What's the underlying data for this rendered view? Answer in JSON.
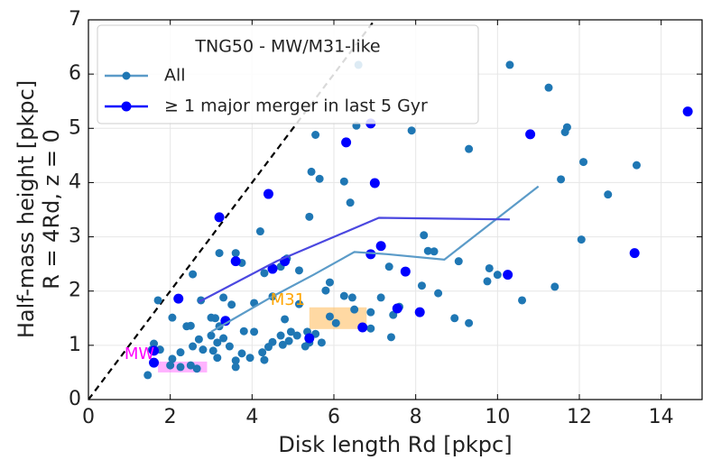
{
  "chart_data": {
    "type": "scatter",
    "legend_title": "TNG50 - MW/M31-like",
    "xlabel": "Disk length Rd [pkpc]",
    "ylabel": [
      "Half-mass height [pkpc]",
      "R =  4Rd, z = 0"
    ],
    "xlim": [
      0,
      15
    ],
    "ylim": [
      0,
      7
    ],
    "xticks": [
      0,
      2,
      4,
      6,
      8,
      10,
      12,
      14
    ],
    "yticks": [
      0,
      1,
      2,
      3,
      4,
      5,
      6,
      7
    ],
    "grid": true,
    "legend": "upper left",
    "reference_line": {
      "x": [
        0,
        7
      ],
      "y": [
        0,
        7
      ],
      "color": "#000000"
    },
    "regions": [
      {
        "x": [
          1.7,
          2.9
        ],
        "y": [
          0.5,
          0.7
        ],
        "color": "#ff66ff"
      },
      {
        "x": [
          5.4,
          6.8
        ],
        "y": [
          1.3,
          1.7
        ],
        "color": "#ffb347"
      }
    ],
    "annotations": [
      {
        "text": "MW",
        "x": 0.88,
        "y": 0.83,
        "color": "#ff00ff"
      },
      {
        "text": "M31",
        "x": 4.45,
        "y": 1.83,
        "color": "#ffa500"
      }
    ],
    "series": [
      {
        "name": "All",
        "color": "#1f77b4",
        "line_color": "#5b9bc8",
        "x": [
          10.3,
          6.6,
          11.25,
          11.7,
          11.65,
          7.9,
          5.55,
          9.3,
          6.55,
          5.45,
          5.65,
          12.1,
          13.4,
          11.55,
          12.7,
          6.25,
          6.4,
          5.4,
          4.2,
          8.2,
          12.05,
          8.3,
          8.45,
          3.2,
          3.6,
          3.75,
          4.85,
          4.7,
          4.3,
          5.15,
          7.35,
          9.05,
          9.8,
          10.0,
          9.75,
          11.4,
          8.55,
          8.15,
          7.15,
          6.25,
          6.45,
          5.9,
          2.55,
          1.7,
          2.75,
          2.05,
          2.5,
          2.4,
          3.0,
          3.1,
          3.3,
          3.5,
          4.05,
          4.5,
          5.15,
          5.8,
          6.5,
          7.6,
          7.45,
          8.95,
          9.3,
          10.6,
          6.9,
          6.05,
          5.9,
          5.55,
          5.4,
          5.3,
          5.7,
          5.35,
          7.4,
          6.9,
          5.1,
          4.9,
          4.75,
          4.5,
          4.4,
          4.25,
          4.3,
          3.95,
          3.75,
          3.6,
          3.45,
          3.3,
          3.15,
          3.05,
          3.0,
          2.8,
          2.7,
          2.55,
          2.25,
          2.05,
          2.0,
          2.25,
          2.5,
          2.65,
          1.6,
          1.55,
          1.75,
          1.45,
          3.6,
          3.15,
          3.2,
          3.8,
          4.05,
          4.95,
          4.7,
          4.8
        ],
        "values": [
          6.17,
          6.17,
          5.75,
          5.02,
          4.93,
          4.96,
          4.88,
          4.62,
          5.05,
          4.2,
          4.07,
          4.38,
          4.32,
          4.06,
          3.78,
          4.02,
          3.63,
          3.37,
          3.1,
          3.03,
          2.95,
          2.74,
          2.73,
          2.7,
          2.7,
          2.52,
          2.6,
          2.45,
          2.33,
          2.38,
          2.45,
          2.55,
          2.42,
          2.3,
          2.18,
          2.08,
          1.96,
          2.1,
          1.88,
          1.91,
          1.88,
          2.16,
          2.31,
          1.83,
          1.83,
          1.51,
          1.36,
          1.35,
          1.51,
          1.5,
          1.88,
          1.75,
          1.78,
          1.9,
          1.76,
          2.01,
          1.66,
          1.71,
          1.56,
          1.5,
          1.41,
          1.83,
          1.61,
          1.41,
          1.53,
          1.21,
          1.05,
          0.98,
          1.05,
          1.25,
          1.15,
          1.31,
          1.18,
          1.08,
          1.01,
          1.06,
          0.97,
          0.87,
          0.73,
          0.77,
          0.85,
          0.72,
          0.98,
          1.13,
          1.05,
          0.9,
          1.18,
          0.92,
          1.11,
          0.98,
          0.87,
          0.75,
          0.63,
          0.6,
          0.63,
          0.57,
          1.03,
          0.92,
          0.92,
          0.45,
          0.6,
          0.77,
          1.35,
          1.26,
          1.25,
          1.25,
          1.18,
          1.48
        ],
        "median_x": [
          3.0,
          4.5,
          5.5,
          6.5,
          7.3,
          8.7,
          11.0
        ],
        "median_y": [
          1.25,
          1.9,
          2.3,
          2.72,
          2.68,
          2.58,
          3.93
        ]
      },
      {
        "name": "≥ 1 major merger in last 5 Gyr",
        "color": "#0000ff",
        "line_color": "#4b48e0",
        "x": [
          14.65,
          10.8,
          6.9,
          6.3,
          7.0,
          4.4,
          3.2,
          13.35,
          3.6,
          4.8,
          7.15,
          6.9,
          4.5,
          10.25,
          7.75,
          2.2,
          7.55,
          8.1,
          3.35,
          5.4,
          6.7,
          1.6,
          1.6
        ],
        "values": [
          5.31,
          4.89,
          5.09,
          4.74,
          3.99,
          3.79,
          3.36,
          2.7,
          2.55,
          2.55,
          2.83,
          2.68,
          2.41,
          2.3,
          2.36,
          1.86,
          1.68,
          1.61,
          1.45,
          1.13,
          1.33,
          0.9,
          0.68
        ],
        "median_x": [
          2.7,
          4.6,
          7.1,
          10.3
        ],
        "median_y": [
          1.8,
          2.55,
          3.35,
          3.32
        ]
      }
    ]
  }
}
